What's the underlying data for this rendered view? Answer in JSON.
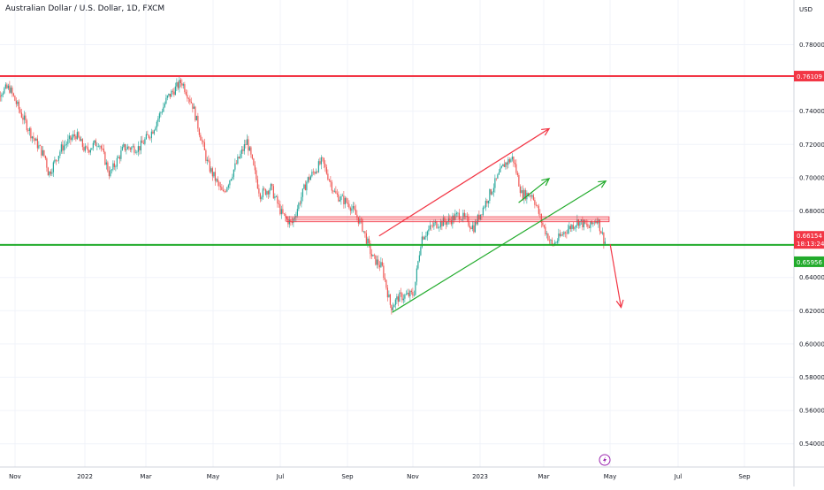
{
  "chart_data": {
    "type": "candlestick",
    "title": "Australian Dollar / U.S. Dollar, 1D, FXCM",
    "currency": "USD",
    "y_ticks": [
      "0.78000",
      "0.76000",
      "0.74000",
      "0.72000",
      "0.70000",
      "0.68000",
      "0.66000",
      "0.64000",
      "0.62000",
      "0.60000",
      "0.58000",
      "0.56000",
      "0.54000"
    ],
    "y_tick_values": [
      0.78,
      0.76,
      0.74,
      0.72,
      0.7,
      0.68,
      0.66,
      0.64,
      0.62,
      0.6,
      0.58,
      0.56,
      0.54
    ],
    "x_ticks": [
      "Nov",
      "2022",
      "Mar",
      "May",
      "Jul",
      "Sep",
      "Nov",
      "2023",
      "Mar",
      "May",
      "Jul",
      "Sep"
    ],
    "ylim": [
      0.528,
      0.798
    ],
    "price_labels": {
      "resistance": "0.76109",
      "last": "0.66154",
      "countdown": "18:13:24",
      "support": "0.65956"
    },
    "levels": {
      "resistance": 0.76109,
      "support": 0.65956,
      "last": 0.66154
    },
    "zone": [
      0.6735,
      0.6765
    ],
    "trend_lines": [
      {
        "name": "channel-upper",
        "from": [
          "2022-10-01",
          0.665
        ],
        "to": [
          "2023-03-06",
          0.7295
        ],
        "color": "#f23645",
        "arrow": true
      },
      {
        "name": "channel-mid",
        "from": [
          "2023-02-06",
          0.685
        ],
        "to": [
          "2023-03-06",
          0.6995
        ],
        "color": "#22ab2c",
        "arrow": true
      },
      {
        "name": "channel-lower",
        "from": [
          "2022-10-13",
          0.619
        ],
        "to": [
          "2023-04-27",
          0.698
        ],
        "color": "#22ab2c",
        "arrow": true
      },
      {
        "name": "projection",
        "from": [
          "2023-05-01",
          0.66
        ],
        "to": [
          "2023-05-11",
          0.622
        ],
        "color": "#f23645",
        "arrow": true
      }
    ],
    "series": [
      {
        "name": "AUDUSD",
        "points": [
          [
            "2021-10-10",
            0.73
          ],
          [
            "2021-10-20",
            0.752
          ],
          [
            "2021-10-28",
            0.754
          ],
          [
            "2021-11-08",
            0.738
          ],
          [
            "2021-11-18",
            0.725
          ],
          [
            "2021-11-30",
            0.712
          ],
          [
            "2021-12-03",
            0.702
          ],
          [
            "2021-12-15",
            0.718
          ],
          [
            "2021-12-28",
            0.726
          ],
          [
            "2022-01-06",
            0.716
          ],
          [
            "2022-01-18",
            0.722
          ],
          [
            "2022-01-28",
            0.702
          ],
          [
            "2022-02-10",
            0.718
          ],
          [
            "2022-02-24",
            0.718
          ],
          [
            "2022-03-08",
            0.728
          ],
          [
            "2022-03-22",
            0.748
          ],
          [
            "2022-04-04",
            0.758
          ],
          [
            "2022-04-14",
            0.744
          ],
          [
            "2022-04-28",
            0.708
          ],
          [
            "2022-05-12",
            0.69
          ],
          [
            "2022-05-24",
            0.708
          ],
          [
            "2022-06-03",
            0.722
          ],
          [
            "2022-06-15",
            0.69
          ],
          [
            "2022-06-25",
            0.694
          ],
          [
            "2022-07-05",
            0.678
          ],
          [
            "2022-07-14",
            0.672
          ],
          [
            "2022-07-28",
            0.698
          ],
          [
            "2022-08-11",
            0.71
          ],
          [
            "2022-08-23",
            0.69
          ],
          [
            "2022-09-05",
            0.684
          ],
          [
            "2022-09-16",
            0.672
          ],
          [
            "2022-09-26",
            0.652
          ],
          [
            "2022-10-05",
            0.646
          ],
          [
            "2022-10-13",
            0.622
          ],
          [
            "2022-10-20",
            0.628
          ],
          [
            "2022-11-03",
            0.63
          ],
          [
            "2022-11-10",
            0.664
          ],
          [
            "2022-11-22",
            0.672
          ],
          [
            "2022-12-05",
            0.674
          ],
          [
            "2022-12-15",
            0.678
          ],
          [
            "2022-12-28",
            0.67
          ],
          [
            "2023-01-10",
            0.688
          ],
          [
            "2023-01-25",
            0.708
          ],
          [
            "2023-02-02",
            0.712
          ],
          [
            "2023-02-10",
            0.69
          ],
          [
            "2023-02-20",
            0.69
          ],
          [
            "2023-03-01",
            0.672
          ],
          [
            "2023-03-10",
            0.659
          ],
          [
            "2023-03-22",
            0.668
          ],
          [
            "2023-04-03",
            0.674
          ],
          [
            "2023-04-13",
            0.67
          ],
          [
            "2023-04-20",
            0.676
          ],
          [
            "2023-04-27",
            0.6615
          ]
        ]
      }
    ]
  }
}
